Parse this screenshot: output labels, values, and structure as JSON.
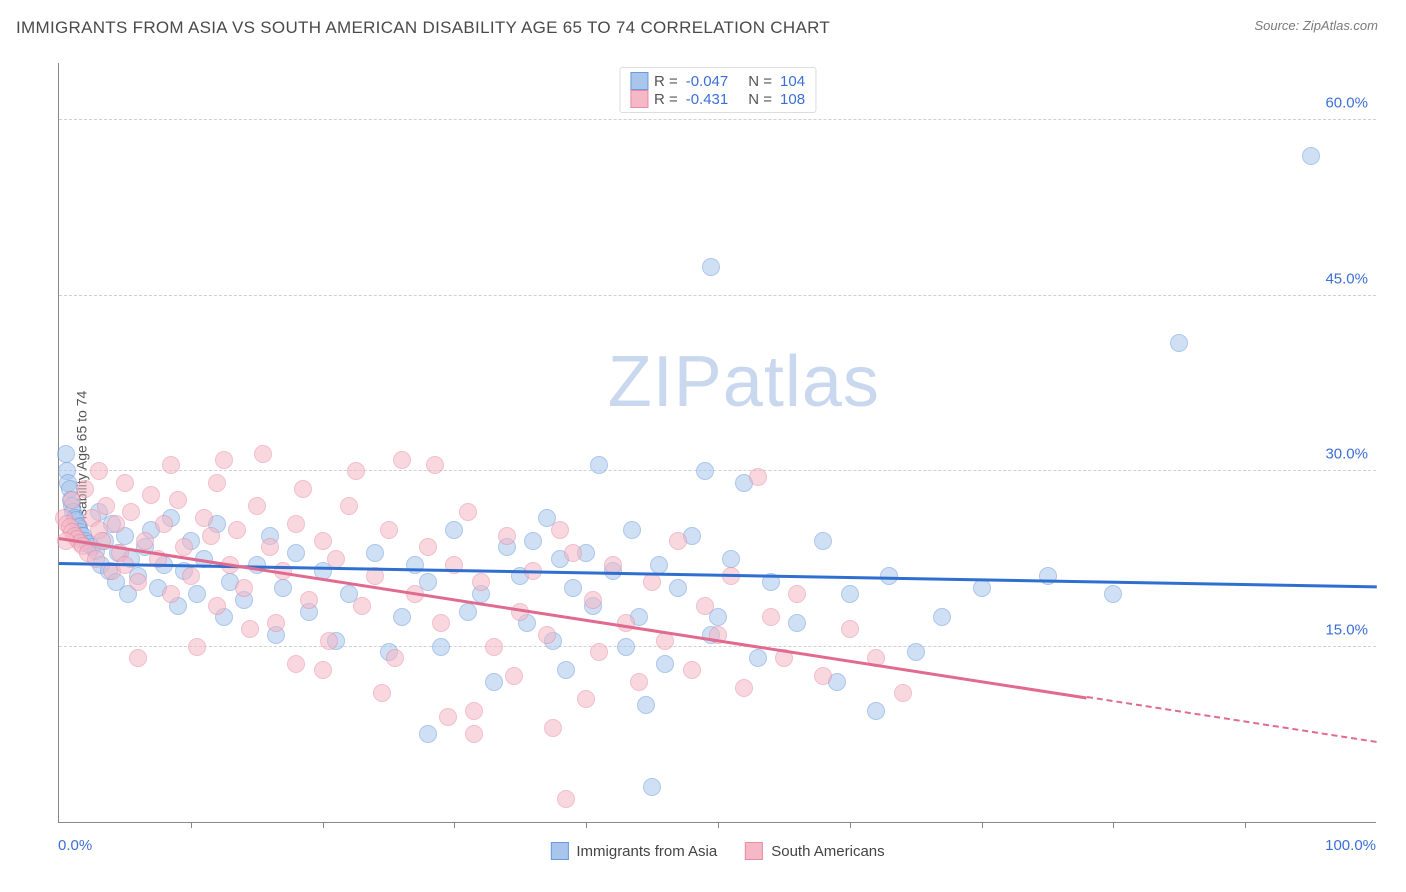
{
  "header": {
    "title": "IMMIGRANTS FROM ASIA VS SOUTH AMERICAN DISABILITY AGE 65 TO 74 CORRELATION CHART",
    "source_prefix": "Source: ",
    "source_name": "ZipAtlas.com"
  },
  "watermark": {
    "bold": "ZIP",
    "light": "atlas",
    "color": "#c9d8ee"
  },
  "chart": {
    "type": "scatter",
    "ylabel": "Disability Age 65 to 74",
    "xlim": [
      0,
      100
    ],
    "ylim": [
      0,
      65
    ],
    "xtick_step": 10,
    "ytick_values": [
      15.0,
      30.0,
      45.0,
      60.0
    ],
    "ytick_fmt_suffix": "%",
    "x_start_label": "0.0%",
    "x_end_label": "100.0%",
    "background_color": "#ffffff",
    "grid_color": "#d0d0d0",
    "axis_color": "#888888",
    "tick_label_color": "#3b6fd6",
    "marker_radius": 9,
    "marker_opacity": 0.55,
    "marker_border_alpha": 0.9,
    "series": [
      {
        "id": "asia",
        "label": "Immigrants from Asia",
        "color_fill": "#a9c5ec",
        "color_stroke": "#6a9bdd",
        "trend_color": "#2f6fd0",
        "R": "-0.047",
        "N": "104",
        "trend": {
          "x0": 0,
          "y0": 22.3,
          "x1": 100,
          "y1": 20.3,
          "dash_from_x": null
        },
        "points": [
          [
            0.5,
            31.5
          ],
          [
            0.6,
            30.0
          ],
          [
            0.7,
            29.0
          ],
          [
            0.8,
            28.5
          ],
          [
            0.9,
            27.5
          ],
          [
            1.0,
            27.0
          ],
          [
            1.1,
            26.5
          ],
          [
            1.2,
            26.0
          ],
          [
            1.3,
            25.8
          ],
          [
            1.5,
            25.2
          ],
          [
            1.6,
            24.8
          ],
          [
            1.8,
            24.5
          ],
          [
            2.0,
            24.0
          ],
          [
            2.2,
            23.8
          ],
          [
            2.5,
            23.5
          ],
          [
            2.8,
            23.2
          ],
          [
            3.0,
            26.5
          ],
          [
            3.2,
            22.0
          ],
          [
            3.5,
            24.0
          ],
          [
            3.8,
            21.5
          ],
          [
            4.0,
            25.5
          ],
          [
            4.3,
            20.5
          ],
          [
            4.5,
            23.0
          ],
          [
            5.0,
            24.5
          ],
          [
            5.2,
            19.5
          ],
          [
            5.5,
            22.5
          ],
          [
            6.0,
            21.0
          ],
          [
            6.5,
            23.5
          ],
          [
            7.0,
            25.0
          ],
          [
            7.5,
            20.0
          ],
          [
            8.0,
            22.0
          ],
          [
            8.5,
            26.0
          ],
          [
            9.0,
            18.5
          ],
          [
            9.5,
            21.5
          ],
          [
            10.0,
            24.0
          ],
          [
            10.5,
            19.5
          ],
          [
            11.0,
            22.5
          ],
          [
            12.0,
            25.5
          ],
          [
            12.5,
            17.5
          ],
          [
            13.0,
            20.5
          ],
          [
            14.0,
            19.0
          ],
          [
            15.0,
            22.0
          ],
          [
            16.0,
            24.5
          ],
          [
            16.5,
            16.0
          ],
          [
            17.0,
            20.0
          ],
          [
            18.0,
            23.0
          ],
          [
            19.0,
            18.0
          ],
          [
            20.0,
            21.5
          ],
          [
            21.0,
            15.5
          ],
          [
            22.0,
            19.5
          ],
          [
            24.0,
            23.0
          ],
          [
            25.0,
            14.5
          ],
          [
            26.0,
            17.5
          ],
          [
            27.0,
            22.0
          ],
          [
            28.0,
            20.5
          ],
          [
            29.0,
            15.0
          ],
          [
            30.0,
            25.0
          ],
          [
            31.0,
            18.0
          ],
          [
            32.0,
            19.5
          ],
          [
            33.0,
            12.0
          ],
          [
            34.0,
            23.5
          ],
          [
            35.0,
            21.0
          ],
          [
            35.5,
            17.0
          ],
          [
            36.0,
            24.0
          ],
          [
            37.0,
            26.0
          ],
          [
            37.5,
            15.5
          ],
          [
            38.0,
            22.5
          ],
          [
            38.5,
            13.0
          ],
          [
            39.0,
            20.0
          ],
          [
            40.0,
            23.0
          ],
          [
            40.5,
            18.5
          ],
          [
            41.0,
            30.5
          ],
          [
            42.0,
            21.5
          ],
          [
            43.0,
            15.0
          ],
          [
            43.5,
            25.0
          ],
          [
            44.0,
            17.5
          ],
          [
            44.5,
            10.0
          ],
          [
            45.0,
            3.0
          ],
          [
            45.5,
            22.0
          ],
          [
            46.0,
            13.5
          ],
          [
            47.0,
            20.0
          ],
          [
            48.0,
            24.5
          ],
          [
            49.0,
            30.0
          ],
          [
            49.5,
            16.0
          ],
          [
            50.0,
            17.5
          ],
          [
            51.0,
            22.5
          ],
          [
            52.0,
            29.0
          ],
          [
            53.0,
            14.0
          ],
          [
            54.0,
            20.5
          ],
          [
            56.0,
            17.0
          ],
          [
            58.0,
            24.0
          ],
          [
            59.0,
            12.0
          ],
          [
            60.0,
            19.5
          ],
          [
            62.0,
            9.5
          ],
          [
            63.0,
            21.0
          ],
          [
            65.0,
            14.5
          ],
          [
            67.0,
            17.5
          ],
          [
            70.0,
            20.0
          ],
          [
            49.5,
            47.5
          ],
          [
            75.0,
            21.0
          ],
          [
            80.0,
            19.5
          ],
          [
            85.0,
            41.0
          ],
          [
            95.0,
            57.0
          ],
          [
            28.0,
            7.5
          ]
        ]
      },
      {
        "id": "south_american",
        "label": "South Americans",
        "color_fill": "#f4b8c6",
        "color_stroke": "#e88ba3",
        "trend_color": "#e06b8f",
        "R": "-0.431",
        "N": "108",
        "trend": {
          "x0": 0,
          "y0": 24.5,
          "x1": 100,
          "y1": 7.0,
          "dash_from_x": 78
        },
        "points": [
          [
            0.4,
            26.0
          ],
          [
            0.6,
            25.5
          ],
          [
            0.8,
            25.2
          ],
          [
            1.0,
            24.8
          ],
          [
            1.2,
            24.5
          ],
          [
            1.4,
            24.2
          ],
          [
            1.6,
            23.9
          ],
          [
            1.8,
            23.6
          ],
          [
            2.0,
            28.5
          ],
          [
            2.2,
            23.0
          ],
          [
            2.5,
            26.0
          ],
          [
            2.8,
            22.5
          ],
          [
            3.0,
            25.0
          ],
          [
            3.3,
            24.0
          ],
          [
            3.6,
            27.0
          ],
          [
            4.0,
            21.5
          ],
          [
            4.3,
            25.5
          ],
          [
            4.6,
            23.0
          ],
          [
            5.0,
            22.0
          ],
          [
            5.5,
            26.5
          ],
          [
            6.0,
            20.5
          ],
          [
            6.5,
            24.0
          ],
          [
            7.0,
            28.0
          ],
          [
            7.5,
            22.5
          ],
          [
            8.0,
            25.5
          ],
          [
            8.5,
            19.5
          ],
          [
            9.0,
            27.5
          ],
          [
            9.5,
            23.5
          ],
          [
            10.0,
            21.0
          ],
          [
            11.0,
            26.0
          ],
          [
            11.5,
            24.5
          ],
          [
            12.0,
            18.5
          ],
          [
            12.5,
            31.0
          ],
          [
            13.0,
            22.0
          ],
          [
            13.5,
            25.0
          ],
          [
            14.0,
            20.0
          ],
          [
            15.0,
            27.0
          ],
          [
            15.5,
            31.5
          ],
          [
            16.0,
            23.5
          ],
          [
            16.5,
            17.0
          ],
          [
            17.0,
            21.5
          ],
          [
            18.0,
            25.5
          ],
          [
            18.5,
            28.5
          ],
          [
            19.0,
            19.0
          ],
          [
            20.0,
            24.0
          ],
          [
            20.5,
            15.5
          ],
          [
            21.0,
            22.5
          ],
          [
            22.0,
            27.0
          ],
          [
            22.5,
            30.0
          ],
          [
            23.0,
            18.5
          ],
          [
            24.0,
            21.0
          ],
          [
            25.0,
            25.0
          ],
          [
            25.5,
            14.0
          ],
          [
            26.0,
            31.0
          ],
          [
            27.0,
            19.5
          ],
          [
            28.0,
            23.5
          ],
          [
            28.5,
            30.5
          ],
          [
            29.0,
            17.0
          ],
          [
            29.5,
            9.0
          ],
          [
            30.0,
            22.0
          ],
          [
            31.0,
            26.5
          ],
          [
            31.5,
            9.5
          ],
          [
            32.0,
            20.5
          ],
          [
            33.0,
            15.0
          ],
          [
            34.0,
            24.5
          ],
          [
            34.5,
            12.5
          ],
          [
            35.0,
            18.0
          ],
          [
            36.0,
            21.5
          ],
          [
            37.0,
            16.0
          ],
          [
            37.5,
            8.0
          ],
          [
            38.0,
            25.0
          ],
          [
            39.0,
            23.0
          ],
          [
            40.0,
            10.5
          ],
          [
            40.5,
            19.0
          ],
          [
            41.0,
            14.5
          ],
          [
            42.0,
            22.0
          ],
          [
            43.0,
            17.0
          ],
          [
            44.0,
            12.0
          ],
          [
            45.0,
            20.5
          ],
          [
            46.0,
            15.5
          ],
          [
            47.0,
            24.0
          ],
          [
            48.0,
            13.0
          ],
          [
            49.0,
            18.5
          ],
          [
            50.0,
            16.0
          ],
          [
            51.0,
            21.0
          ],
          [
            52.0,
            11.5
          ],
          [
            53.0,
            29.5
          ],
          [
            54.0,
            17.5
          ],
          [
            55.0,
            14.0
          ],
          [
            56.0,
            19.5
          ],
          [
            58.0,
            12.5
          ],
          [
            60.0,
            16.5
          ],
          [
            62.0,
            14.0
          ],
          [
            64.0,
            11.0
          ],
          [
            38.5,
            2.0
          ],
          [
            31.5,
            7.5
          ],
          [
            24.5,
            11.0
          ],
          [
            20.0,
            13.0
          ],
          [
            18.0,
            13.5
          ],
          [
            12.0,
            29.0
          ],
          [
            8.5,
            30.5
          ],
          [
            5.0,
            29.0
          ],
          [
            3.0,
            30.0
          ],
          [
            1.0,
            27.5
          ],
          [
            0.5,
            24.0
          ],
          [
            6.0,
            14.0
          ],
          [
            10.5,
            15.0
          ],
          [
            14.5,
            16.5
          ]
        ]
      }
    ],
    "legend_top": {
      "rows": [
        {
          "swatch_series": "asia",
          "r_label": "R =",
          "n_label": "N ="
        },
        {
          "swatch_series": "south_american",
          "r_label": "R =",
          "n_label": "N ="
        }
      ]
    }
  }
}
